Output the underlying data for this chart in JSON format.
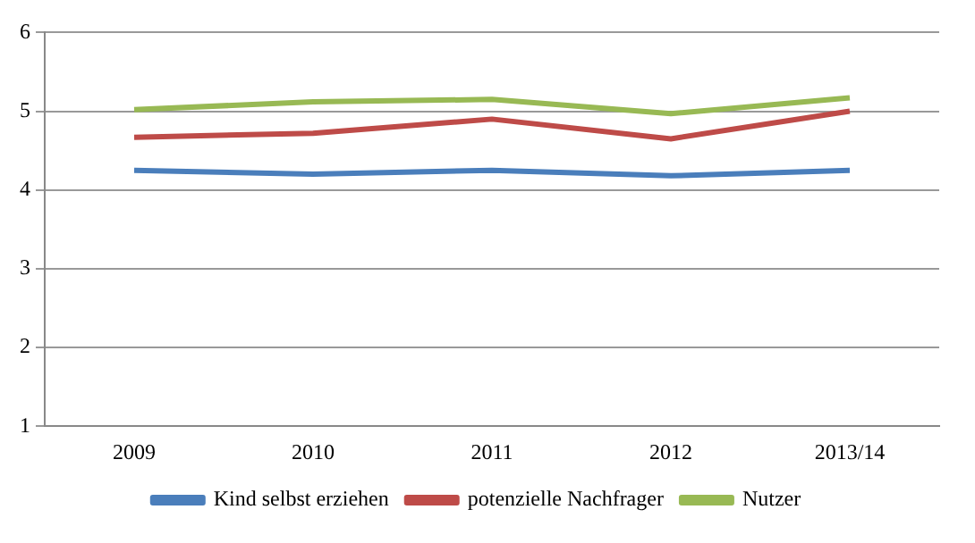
{
  "chart_data": {
    "type": "line",
    "categories": [
      "2009",
      "2010",
      "2011",
      "2012",
      "2013/14"
    ],
    "series": [
      {
        "name": "Kind selbst erziehen",
        "color": "#4a7ebb",
        "values": [
          4.25,
          4.2,
          4.25,
          4.18,
          4.25
        ]
      },
      {
        "name": "potenzielle Nachfrager",
        "color": "#be4b48",
        "values": [
          4.67,
          4.72,
          4.9,
          4.65,
          5.0
        ]
      },
      {
        "name": "Nutzer",
        "color": "#98b954",
        "values": [
          5.02,
          5.12,
          5.15,
          4.97,
          5.17
        ]
      }
    ],
    "ylim": [
      1,
      6
    ],
    "yticks": [
      1,
      2,
      3,
      4,
      5,
      6
    ],
    "grid": "y",
    "legend": "bottom",
    "marker": "none",
    "line_style": "solid"
  }
}
